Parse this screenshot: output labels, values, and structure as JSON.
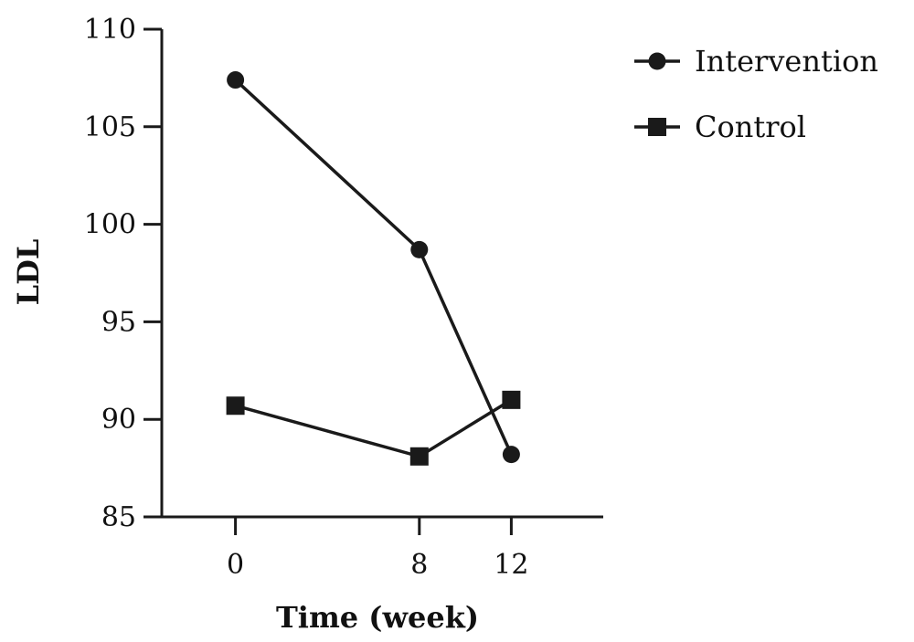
{
  "chart_data": {
    "type": "line",
    "title": "",
    "xlabel": "Time (week)",
    "ylabel": "LDL",
    "x": [
      0,
      8,
      12
    ],
    "x_tick_labels": [
      "0",
      "8",
      "12"
    ],
    "ylim": [
      85,
      110
    ],
    "y_ticks": [
      85,
      90,
      95,
      100,
      105,
      110
    ],
    "y_tick_labels": [
      "85",
      "90",
      "95",
      "100",
      "105",
      "110"
    ],
    "grid": false,
    "legend_position": "top-right",
    "series": [
      {
        "name": "Intervention",
        "marker": "circle",
        "values": [
          107.4,
          98.7,
          88.2
        ]
      },
      {
        "name": "Control",
        "marker": "square",
        "values": [
          90.7,
          88.1,
          91.0
        ]
      }
    ],
    "colors": {
      "line": "#1a1a1a",
      "axis": "#1a1a1a"
    }
  }
}
